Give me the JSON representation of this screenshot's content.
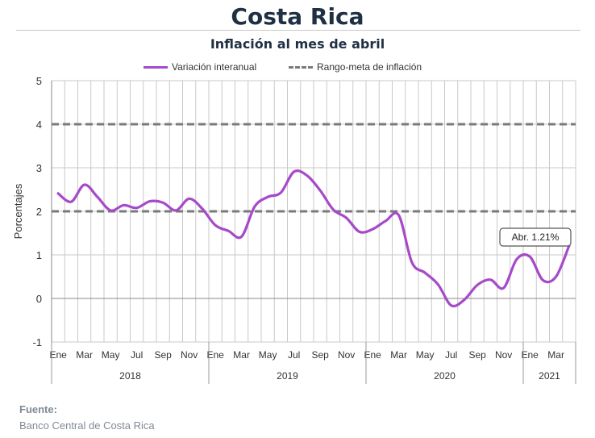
{
  "title": "Costa Rica",
  "subtitle": "Inflación al mes de abril",
  "legend": {
    "series_label": "Variación interanual",
    "target_label": "Rango-meta de inflación"
  },
  "source": {
    "heading": "Fuente:",
    "text": "Banco Central de Costa Rica"
  },
  "annotation": "Abr. 1.21%",
  "colors": {
    "series": "#a64ac9",
    "target": "#7a7a7a",
    "grid": "#c9c9c9"
  },
  "chart_data": {
    "type": "line",
    "ylabel": "Porcentajes",
    "ylim": [
      -1,
      5
    ],
    "yticks": [
      "-1",
      "0",
      "1",
      "2",
      "3",
      "4",
      "5"
    ],
    "grid": true,
    "legend_position": "top",
    "x_tick_labels": [
      "Ene",
      "Mar",
      "May",
      "Jul",
      "Sep",
      "Nov",
      "Ene",
      "Mar",
      "May",
      "Jul",
      "Sep",
      "Nov",
      "Ene",
      "Mar",
      "May",
      "Jul",
      "Sep",
      "Nov",
      "Ene",
      "Mar"
    ],
    "year_labels": [
      "2018",
      "2019",
      "2020",
      "2021"
    ],
    "x": [
      "2018-01",
      "2018-02",
      "2018-03",
      "2018-04",
      "2018-05",
      "2018-06",
      "2018-07",
      "2018-08",
      "2018-09",
      "2018-10",
      "2018-11",
      "2018-12",
      "2019-01",
      "2019-02",
      "2019-03",
      "2019-04",
      "2019-05",
      "2019-06",
      "2019-07",
      "2019-08",
      "2019-09",
      "2019-10",
      "2019-11",
      "2019-12",
      "2020-01",
      "2020-02",
      "2020-03",
      "2020-04",
      "2020-05",
      "2020-06",
      "2020-07",
      "2020-08",
      "2020-09",
      "2020-10",
      "2020-11",
      "2020-12",
      "2021-01",
      "2021-02",
      "2021-03",
      "2021-04"
    ],
    "series": [
      {
        "name": "Variación interanual",
        "values": [
          2.41,
          2.22,
          2.61,
          2.33,
          2.02,
          2.14,
          2.08,
          2.23,
          2.2,
          2.02,
          2.29,
          2.06,
          1.68,
          1.55,
          1.42,
          2.11,
          2.33,
          2.43,
          2.91,
          2.82,
          2.48,
          2.04,
          1.85,
          1.53,
          1.59,
          1.78,
          1.91,
          0.83,
          0.59,
          0.32,
          -0.16,
          -0.03,
          0.31,
          0.43,
          0.24,
          0.9,
          0.96,
          0.42,
          0.5,
          1.21
        ]
      },
      {
        "name": "Rango-meta de inflación",
        "values_low": 2,
        "values_high": 4
      }
    ]
  }
}
